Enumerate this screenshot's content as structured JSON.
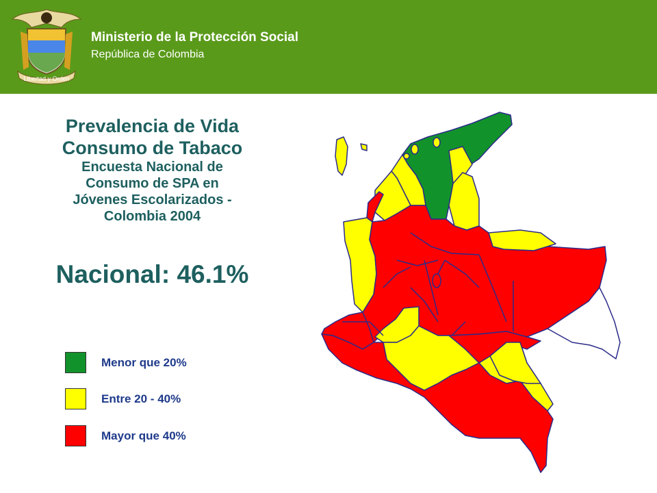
{
  "header": {
    "ministry": "Ministerio de la Protección Social",
    "republic": "República de Colombia",
    "logo_motto": "Libertad y Orden",
    "background_color": "#5a9a1a"
  },
  "title": {
    "line1": "Prevalencia de Vida",
    "line2": "Consumo de Tabaco",
    "line3": "Encuesta Nacional de",
    "line4": "Consumo de SPA en",
    "line5": "Jóvenes Escolarizados -",
    "line6": "Colombia 2004"
  },
  "nacional": "Nacional: 46.1%",
  "legend": [
    {
      "label": "Menor que 20%",
      "color": "#12922b"
    },
    {
      "label": "Entre 20 - 40%",
      "color": "#ffff00"
    },
    {
      "label": "Mayor que 40%",
      "color": "#ff0000"
    }
  ],
  "map_colors": {
    "green": "#12922b",
    "yellow": "#ffff00",
    "red": "#ff0000",
    "white": "#ffffff",
    "border": "#2b2b8a"
  }
}
